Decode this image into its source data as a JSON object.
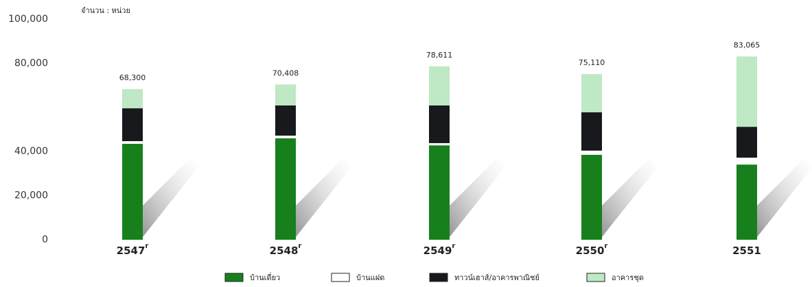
{
  "chart_data": {
    "type": "stacked-bar",
    "unit_label": "จำนวน : หน่วย",
    "categories": [
      "2547",
      "2548",
      "2549",
      "2550",
      "2551"
    ],
    "category_notes": [
      "r",
      "r",
      "r",
      "r",
      null
    ],
    "series": [
      {
        "name": "บ้านเดี่ยว",
        "color": "#17801c",
        "values": [
          43500,
          46000,
          42800,
          38500,
          34100
        ]
      },
      {
        "name": "บ้านแฝด",
        "color": "#ffffff",
        "values": [
          1200,
          1200,
          1000,
          1900,
          3100
        ]
      },
      {
        "name": "ทาวน์เฮาส์/อาคารพาณิชย์",
        "color": "#17191c",
        "values": [
          14900,
          13700,
          17100,
          17400,
          14000
        ]
      },
      {
        "name": "อาคารชุด",
        "color": "#bfe8c4",
        "values": [
          8700,
          9500,
          17700,
          17300,
          31900
        ]
      }
    ],
    "totals": [
      68300,
      70408,
      78611,
      75110,
      83065
    ],
    "total_labels": [
      "68,300",
      "70,408",
      "78,611",
      "75,110",
      "83,065"
    ],
    "ylim": [
      0,
      100000
    ],
    "yticks": [
      {
        "value": 0,
        "label": "0"
      },
      {
        "value": 20000,
        "label": "20,000"
      },
      {
        "value": 40000,
        "label": "40,000"
      },
      {
        "value": 80000,
        "label": "80,000"
      },
      {
        "value": 100000,
        "label": "100,000"
      }
    ],
    "grid": false
  }
}
